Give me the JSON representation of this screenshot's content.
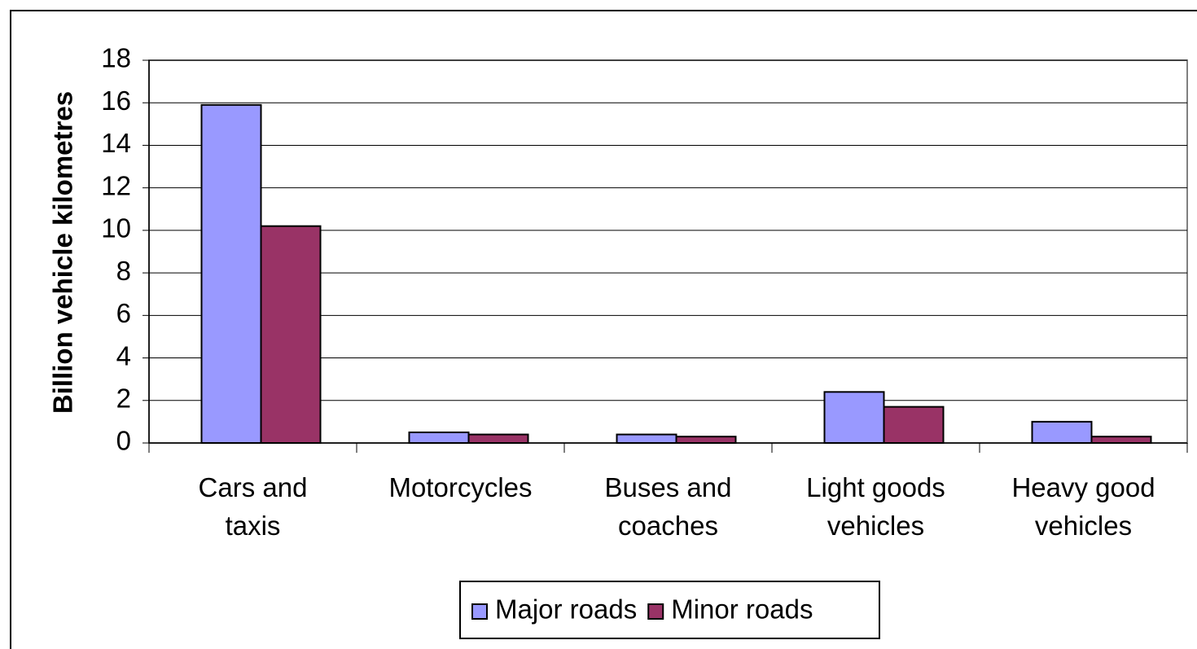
{
  "chart_data": {
    "type": "bar",
    "y_axis_label": "Billion vehicle kilometres",
    "categories": [
      "Cars and\ntaxis",
      "Motorcycles",
      "Buses and\ncoaches",
      "Light goods\nvehicles",
      "Heavy good\nvehicles"
    ],
    "series": [
      {
        "name": "Major roads",
        "color": "#9999ff",
        "values": [
          15.9,
          0.5,
          0.4,
          2.4,
          1.0
        ]
      },
      {
        "name": "Minor roads",
        "color": "#993366",
        "values": [
          10.2,
          0.4,
          0.3,
          1.7,
          0.3
        ]
      }
    ],
    "ylim": [
      0,
      18
    ],
    "yticks": [
      0,
      2,
      4,
      6,
      8,
      10,
      12,
      14,
      16,
      18
    ],
    "grid": true,
    "legend": "bottom"
  }
}
